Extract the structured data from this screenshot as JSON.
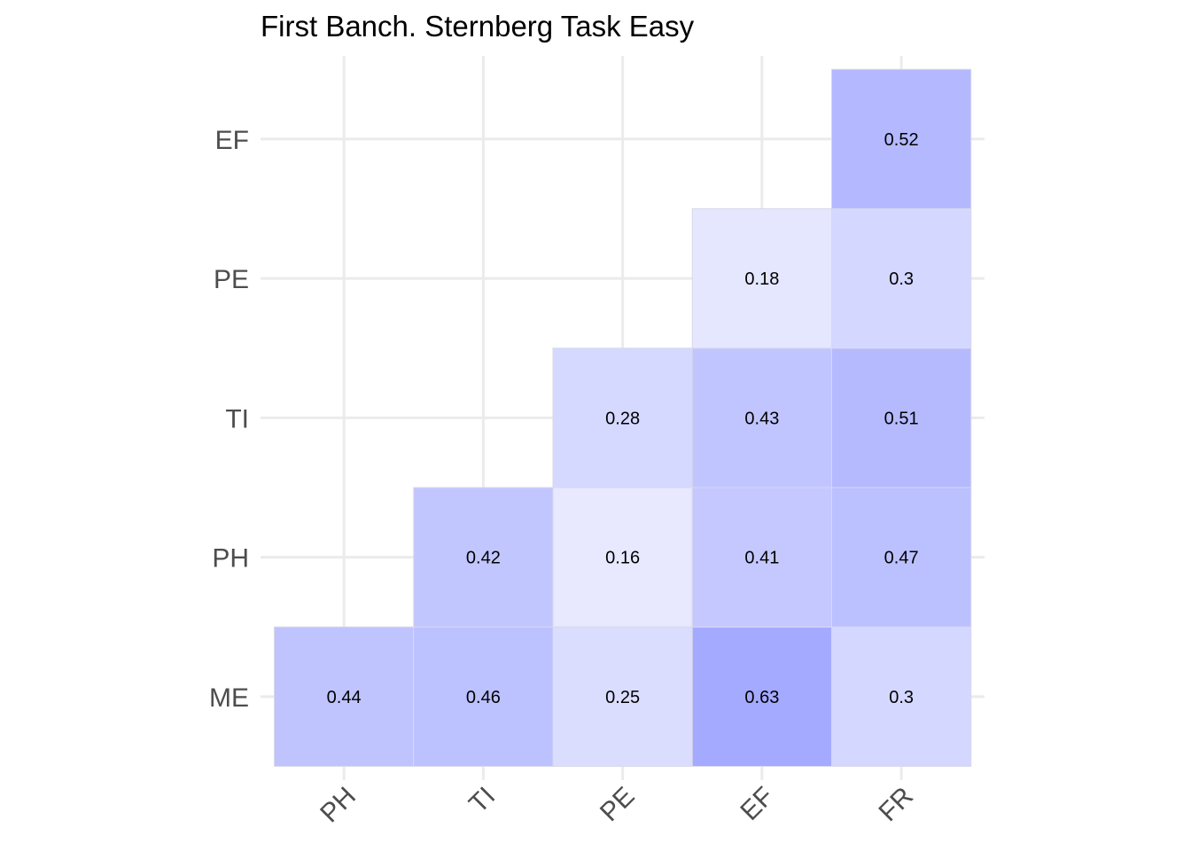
{
  "chart_data": {
    "type": "heatmap",
    "title": "First Banch. Sternberg Task Easy",
    "xlabel": "",
    "ylabel": "",
    "x_categories": [
      "PH",
      "TI",
      "PE",
      "EF",
      "FR"
    ],
    "y_categories": [
      "ME",
      "PH",
      "TI",
      "PE",
      "EF"
    ],
    "cells": [
      {
        "x": "PH",
        "y": "ME",
        "value": 0.44,
        "label": "0.44"
      },
      {
        "x": "TI",
        "y": "ME",
        "value": 0.46,
        "label": "0.46"
      },
      {
        "x": "PE",
        "y": "ME",
        "value": 0.25,
        "label": "0.25"
      },
      {
        "x": "EF",
        "y": "ME",
        "value": 0.63,
        "label": "0.63"
      },
      {
        "x": "FR",
        "y": "ME",
        "value": 0.3,
        "label": "0.3"
      },
      {
        "x": "TI",
        "y": "PH",
        "value": 0.42,
        "label": "0.42"
      },
      {
        "x": "PE",
        "y": "PH",
        "value": 0.16,
        "label": "0.16"
      },
      {
        "x": "EF",
        "y": "PH",
        "value": 0.41,
        "label": "0.41"
      },
      {
        "x": "FR",
        "y": "PH",
        "value": 0.47,
        "label": "0.47"
      },
      {
        "x": "PE",
        "y": "TI",
        "value": 0.28,
        "label": "0.28"
      },
      {
        "x": "EF",
        "y": "TI",
        "value": 0.43,
        "label": "0.43"
      },
      {
        "x": "FR",
        "y": "TI",
        "value": 0.51,
        "label": "0.51"
      },
      {
        "x": "EF",
        "y": "PE",
        "value": 0.18,
        "label": "0.18"
      },
      {
        "x": "FR",
        "y": "PE",
        "value": 0.3,
        "label": "0.3"
      },
      {
        "x": "FR",
        "y": "EF",
        "value": 0.52,
        "label": "0.52"
      }
    ],
    "color_low": "#ffffff",
    "color_high": "#6e78ff",
    "grid": true,
    "legend": "none"
  }
}
